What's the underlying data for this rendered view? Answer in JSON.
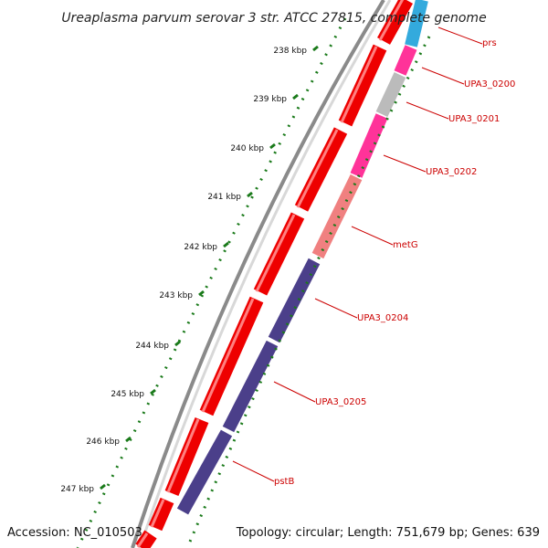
{
  "title": "Ureaplasma parvum serovar 3 str. ATCC 27815, complete genome",
  "accession": "Accession: NC_010503",
  "summary": "Topology: circular; Length: 751,679 bp; Genes: 639",
  "ticks": [
    "238 kbp",
    "239 kbp",
    "240 kbp",
    "241 kbp",
    "242 kbp",
    "243 kbp",
    "244 kbp",
    "245 kbp",
    "246 kbp",
    "247 kbp"
  ],
  "genes": [
    {
      "label": "prs",
      "color": "#33aadd"
    },
    {
      "label": "UPA3_0200",
      "color": "#ff3399"
    },
    {
      "label": "UPA3_0201",
      "color": "#bbbbbb"
    },
    {
      "label": "UPA3_0202",
      "color": "#ff3399"
    },
    {
      "label": "metG",
      "color": "#f08080"
    },
    {
      "label": "UPA3_0204",
      "color": "#4b3f8a"
    },
    {
      "label": "UPA3_0205",
      "color": "#4b3f8a"
    },
    {
      "label": "pstB",
      "color": "#4b3f8a"
    }
  ],
  "colors": {
    "backbone": "#7a7a7a",
    "forward_cds": "#ee0000",
    "tick_dots": "#1a7a1a",
    "label_line": "#cc0000"
  }
}
